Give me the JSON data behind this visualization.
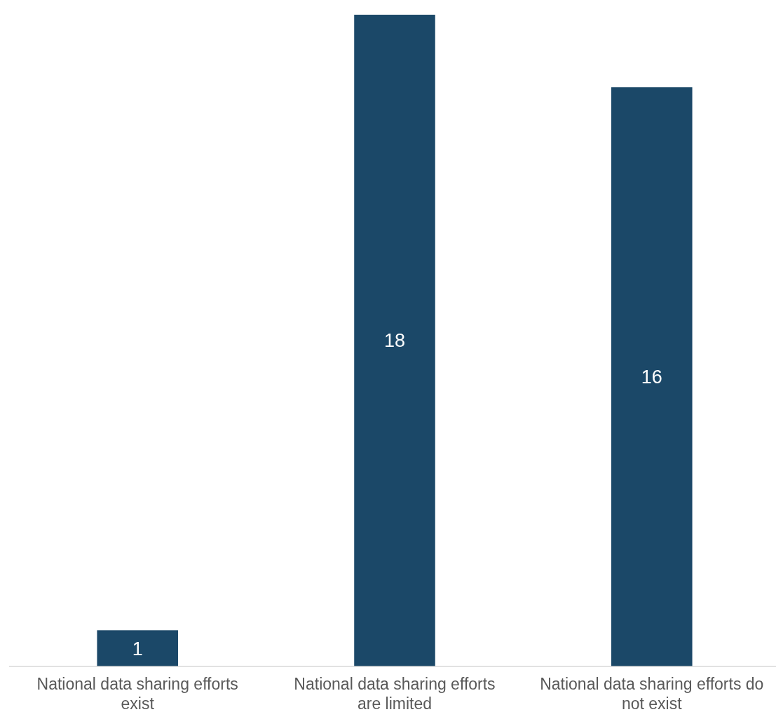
{
  "chart_data": {
    "type": "bar",
    "categories": [
      "National data sharing efforts exist",
      "National data sharing efforts are limited",
      "National data sharing efforts do not exist"
    ],
    "values": [
      1,
      18,
      16
    ],
    "color": "#1b4868",
    "data_labels": true
  }
}
